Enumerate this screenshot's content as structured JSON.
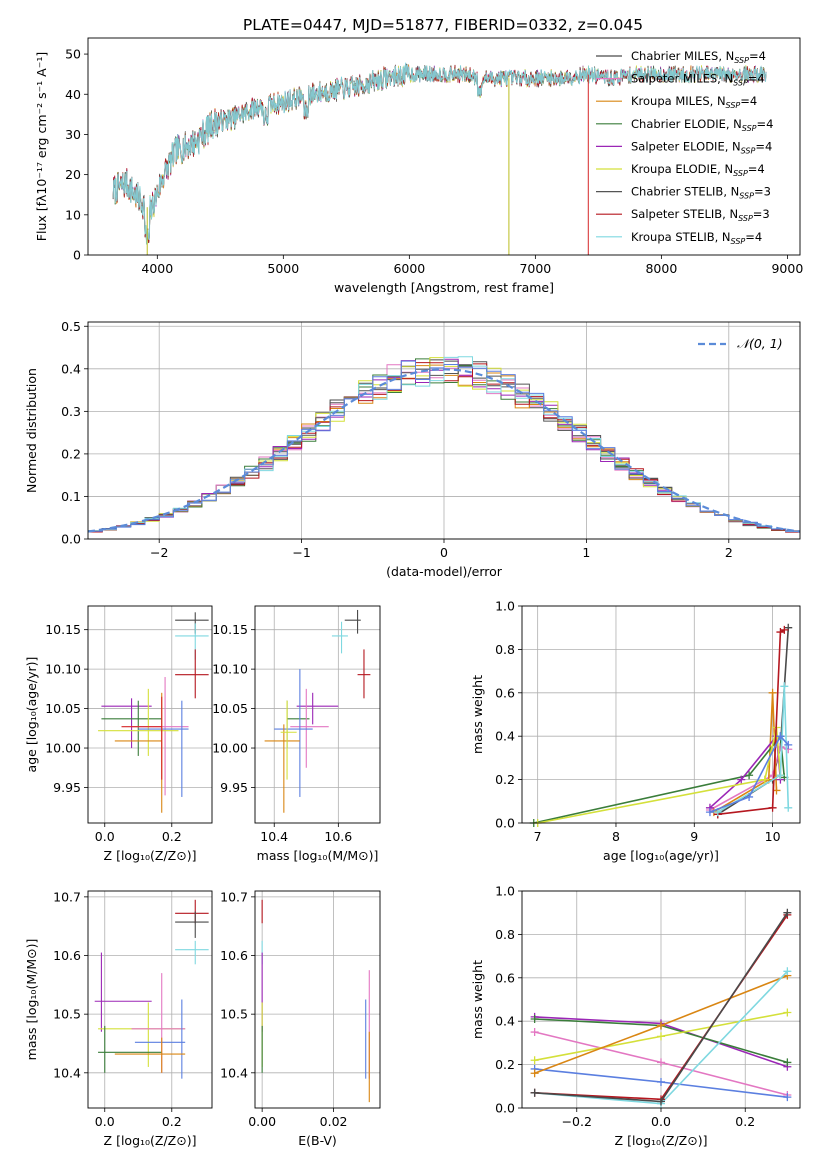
{
  "title": "PLATE=0447, MJD=51877, FIBERID=0332, z=0.045",
  "chart_data": [
    {
      "id": "spectrum",
      "type": "line",
      "xlabel": "wavelength [Angstrom, rest frame]",
      "ylabel": "Flux [fλ10⁻¹⁷ erg cm⁻² s⁻¹ A⁻¹]",
      "xlim": [
        3450,
        9100
      ],
      "ylim": [
        0,
        54
      ],
      "xticks": [
        4000,
        5000,
        6000,
        7000,
        8000,
        9000
      ],
      "yticks": [
        0,
        10,
        20,
        30,
        40,
        50
      ],
      "grid": false,
      "legend_position": "right",
      "continuum_anchors": [
        [
          3650,
          16
        ],
        [
          3750,
          18
        ],
        [
          3850,
          14
        ],
        [
          3950,
          11
        ],
        [
          4050,
          20
        ],
        [
          4150,
          26
        ],
        [
          4300,
          28
        ],
        [
          4450,
          33
        ],
        [
          4600,
          34
        ],
        [
          4800,
          37
        ],
        [
          5000,
          38
        ],
        [
          5200,
          40
        ],
        [
          5400,
          41
        ],
        [
          5600,
          42
        ],
        [
          5800,
          44
        ],
        [
          6000,
          45
        ],
        [
          6200,
          45
        ],
        [
          6400,
          45
        ],
        [
          6600,
          44
        ],
        [
          6800,
          44
        ],
        [
          7000,
          44
        ],
        [
          7200,
          44
        ],
        [
          7400,
          45
        ],
        [
          7600,
          44
        ],
        [
          7800,
          45
        ],
        [
          8000,
          45
        ],
        [
          8200,
          45
        ],
        [
          8400,
          45
        ],
        [
          8600,
          45
        ],
        [
          8830,
          45
        ]
      ],
      "dropouts": [
        [
          3920,
          "#bcbd22"
        ],
        [
          6790,
          "#bcbd22"
        ],
        [
          7420,
          "#d62728"
        ]
      ],
      "series": [
        {
          "name": "Chabrier MILES, N",
          "sub": "SSP",
          "suffix": "=4",
          "color": "#4a4a4a",
          "lw": 0.8
        },
        {
          "name": "Salpeter MILES, N",
          "sub": "SSP",
          "suffix": "=4",
          "color": "#e377c2",
          "lw": 0.8
        },
        {
          "name": "Kroupa MILES, N",
          "sub": "SSP",
          "suffix": "=4",
          "color": "#d98613",
          "lw": 0.8
        },
        {
          "name": "Chabrier ELODIE, N",
          "sub": "SSP",
          "suffix": "=4",
          "color": "#3a7d3a",
          "lw": 0.8
        },
        {
          "name": "Salpeter ELODIE, N",
          "sub": "SSP",
          "suffix": "=4",
          "color": "#9b26b6",
          "lw": 0.8
        },
        {
          "name": "Kroupa ELODIE, N",
          "sub": "SSP",
          "suffix": "=4",
          "color": "#d4e03a",
          "lw": 0.8
        },
        {
          "name": "Chabrier STELIB, N",
          "sub": "SSP",
          "suffix": "=3",
          "color": "#555555",
          "lw": 0.8
        },
        {
          "name": "Salpeter STELIB, N",
          "sub": "SSP",
          "suffix": "=3",
          "color": "#b5171f",
          "lw": 0.8
        },
        {
          "name": "Kroupa STELIB, N",
          "sub": "SSP",
          "suffix": "=4",
          "color": "#7fd8e0",
          "lw": 1.0
        }
      ]
    },
    {
      "id": "residual-hist",
      "type": "step-histogram",
      "xlabel": "(data-model)/error",
      "ylabel": "Normed distribution",
      "xlim": [
        -2.5,
        2.5
      ],
      "ylim": [
        0,
        0.51
      ],
      "xticks": [
        -2,
        -1,
        0,
        1,
        2
      ],
      "yticks": [
        0.0,
        0.1,
        0.2,
        0.3,
        0.4,
        0.5
      ],
      "grid": true,
      "bin_width": 0.1,
      "legend": {
        "label": "𝒩(0, 1)",
        "position": "top-right"
      },
      "normal_curve": {
        "mean": 0,
        "sigma": 1,
        "color": "#5b8bd8"
      },
      "colors": [
        "#4a4a4a",
        "#e377c2",
        "#d98613",
        "#3a7d3a",
        "#9b26b6",
        "#d4e03a",
        "#555555",
        "#b5171f",
        "#7fd8e0",
        "#5b7fe0"
      ]
    },
    {
      "id": "age-vs-Z",
      "type": "errorbar",
      "xlabel": "Z [log₁₀(Z/Z⊙)]",
      "ylabel": "age  [log₁₀(age/yr)]",
      "xlim": [
        -0.05,
        0.32
      ],
      "ylim": [
        9.905,
        10.18
      ],
      "xticks": [
        0.0,
        0.2
      ],
      "yticks": [
        9.95,
        10.0,
        10.05,
        10.1,
        10.15
      ],
      "grid": true,
      "points": [
        {
          "x": 0.27,
          "y": 10.162,
          "xlo": 0.21,
          "xhi": 0.31,
          "ylo": 10.145,
          "yhi": 10.172,
          "color": "#4a4a4a"
        },
        {
          "x": 0.27,
          "y": 10.142,
          "xlo": 0.21,
          "xhi": 0.31,
          "ylo": 10.112,
          "yhi": 10.158,
          "color": "#7fd8e0"
        },
        {
          "x": 0.27,
          "y": 10.093,
          "xlo": 0.21,
          "xhi": 0.31,
          "ylo": 10.063,
          "yhi": 10.125,
          "color": "#b5171f"
        },
        {
          "x": 0.08,
          "y": 10.053,
          "xlo": -0.01,
          "xhi": 0.14,
          "ylo": 10.0,
          "yhi": 10.063,
          "color": "#9b26b6"
        },
        {
          "x": 0.1,
          "y": 10.037,
          "xlo": -0.01,
          "xhi": 0.17,
          "ylo": 9.99,
          "yhi": 10.06,
          "color": "#3a7d3a"
        },
        {
          "x": 0.18,
          "y": 10.027,
          "xlo": 0.08,
          "xhi": 0.25,
          "ylo": 9.94,
          "yhi": 10.09,
          "color": "#e377c2"
        },
        {
          "x": 0.13,
          "y": 10.022,
          "xlo": -0.02,
          "xhi": 0.22,
          "ylo": 9.99,
          "yhi": 10.075,
          "color": "#d4e03a"
        },
        {
          "x": 0.23,
          "y": 10.024,
          "xlo": 0.1,
          "xhi": 0.25,
          "ylo": 9.938,
          "yhi": 10.06,
          "color": "#5b7fe0"
        },
        {
          "x": 0.17,
          "y": 10.009,
          "xlo": 0.03,
          "xhi": 0.17,
          "ylo": 9.918,
          "yhi": 10.07,
          "color": "#d98613"
        },
        {
          "x": 0.17,
          "y": 10.027,
          "xlo": 0.05,
          "xhi": 0.17,
          "ylo": 9.96,
          "yhi": 10.065,
          "color": "#d62728"
        }
      ]
    },
    {
      "id": "age-vs-mass",
      "type": "errorbar",
      "xlabel": "mass [log₁₀(M/M⊙)]",
      "ylabel": "",
      "xlim": [
        10.34,
        10.73
      ],
      "ylim": [
        9.905,
        10.18
      ],
      "xticks": [
        10.4,
        10.6
      ],
      "yticks": [
        9.95,
        10.0,
        10.05,
        10.1,
        10.15
      ],
      "grid": true,
      "points": [
        {
          "x": 10.66,
          "y": 10.162,
          "xlo": 10.62,
          "xhi": 10.67,
          "ylo": 10.145,
          "yhi": 10.175,
          "color": "#4a4a4a"
        },
        {
          "x": 10.61,
          "y": 10.142,
          "xlo": 10.58,
          "xhi": 10.63,
          "ylo": 10.12,
          "yhi": 10.16,
          "color": "#7fd8e0"
        },
        {
          "x": 10.68,
          "y": 10.093,
          "xlo": 10.66,
          "xhi": 10.7,
          "ylo": 10.063,
          "yhi": 10.125,
          "color": "#b5171f"
        },
        {
          "x": 10.52,
          "y": 10.053,
          "xlo": 10.47,
          "xhi": 10.6,
          "ylo": 10.03,
          "yhi": 10.07,
          "color": "#9b26b6"
        },
        {
          "x": 10.44,
          "y": 10.037,
          "xlo": 10.44,
          "xhi": 10.51,
          "ylo": 10.0,
          "yhi": 10.06,
          "color": "#3a7d3a"
        },
        {
          "x": 10.5,
          "y": 10.027,
          "xlo": 10.45,
          "xhi": 10.57,
          "ylo": 9.975,
          "yhi": 10.075,
          "color": "#e377c2"
        },
        {
          "x": 10.48,
          "y": 10.024,
          "xlo": 10.4,
          "xhi": 10.52,
          "ylo": 9.938,
          "yhi": 10.1,
          "color": "#5b7fe0"
        },
        {
          "x": 10.43,
          "y": 10.009,
          "xlo": 10.37,
          "xhi": 10.48,
          "ylo": 9.918,
          "yhi": 10.03,
          "color": "#d98613"
        },
        {
          "x": 10.44,
          "y": 10.02,
          "xlo": 10.42,
          "xhi": 10.47,
          "ylo": 9.96,
          "yhi": 10.06,
          "color": "#d4e03a"
        }
      ]
    },
    {
      "id": "massweight-vs-age",
      "type": "line",
      "xlabel": "age  [log₁₀(age/yr)]",
      "ylabel": "mass weight",
      "xlim": [
        6.8,
        10.35
      ],
      "ylim": [
        0,
        1.0
      ],
      "xticks": [
        7,
        8,
        9,
        10
      ],
      "yticks": [
        0.0,
        0.2,
        0.4,
        0.6,
        0.8,
        1.0
      ],
      "grid": true,
      "series": [
        {
          "color": "#4a4a4a",
          "pts": [
            [
              9.3,
              0.04
            ],
            [
              10.0,
              0.2
            ],
            [
              10.1,
              0.35
            ],
            [
              10.2,
              0.9
            ]
          ]
        },
        {
          "color": "#e377c2",
          "pts": [
            [
              9.2,
              0.06
            ],
            [
              10.0,
              0.22
            ],
            [
              10.1,
              0.35
            ],
            [
              10.2,
              0.34
            ]
          ]
        },
        {
          "color": "#d98613",
          "pts": [
            [
              9.25,
              0.05
            ],
            [
              9.95,
              0.2
            ],
            [
              10.0,
              0.6
            ],
            [
              10.05,
              0.15
            ]
          ]
        },
        {
          "color": "#3a7d3a",
          "pts": [
            [
              6.95,
              0.0
            ],
            [
              9.7,
              0.22
            ],
            [
              10.1,
              0.4
            ],
            [
              10.15,
              0.21
            ]
          ]
        },
        {
          "color": "#9b26b6",
          "pts": [
            [
              9.2,
              0.07
            ],
            [
              9.6,
              0.2
            ],
            [
              10.05,
              0.4
            ],
            [
              10.1,
              0.2
            ]
          ]
        },
        {
          "color": "#d4e03a",
          "pts": [
            [
              7.0,
              0.0
            ],
            [
              9.9,
              0.2
            ],
            [
              10.05,
              0.44
            ],
            [
              10.1,
              0.22
            ]
          ]
        },
        {
          "color": "#b5171f",
          "pts": [
            [
              9.3,
              0.04
            ],
            [
              10.0,
              0.07
            ],
            [
              10.1,
              0.88
            ],
            [
              10.15,
              0.89
            ]
          ]
        },
        {
          "color": "#7fd8e0",
          "pts": [
            [
              9.3,
              0.05
            ],
            [
              10.1,
              0.22
            ],
            [
              10.15,
              0.63
            ],
            [
              10.2,
              0.07
            ]
          ]
        },
        {
          "color": "#5b7fe0",
          "pts": [
            [
              9.2,
              0.05
            ],
            [
              9.7,
              0.12
            ],
            [
              10.1,
              0.4
            ],
            [
              10.2,
              0.36
            ]
          ]
        }
      ]
    },
    {
      "id": "mass-vs-Z",
      "type": "errorbar",
      "xlabel": "Z [log₁₀(Z/Z⊙)]",
      "ylabel": "mass [log₁₀(M/M⊙)]",
      "xlim": [
        -0.05,
        0.32
      ],
      "ylim": [
        10.34,
        10.71
      ],
      "xticks": [
        0.0,
        0.2
      ],
      "yticks": [
        10.4,
        10.5,
        10.6,
        10.7
      ],
      "grid": true,
      "points": [
        {
          "x": 0.27,
          "y": 10.672,
          "xlo": 0.21,
          "xhi": 0.31,
          "ylo": 10.655,
          "yhi": 10.695,
          "color": "#b5171f"
        },
        {
          "x": 0.27,
          "y": 10.657,
          "xlo": 0.21,
          "xhi": 0.31,
          "ylo": 10.63,
          "yhi": 10.675,
          "color": "#4a4a4a"
        },
        {
          "x": 0.27,
          "y": 10.61,
          "xlo": 0.21,
          "xhi": 0.31,
          "ylo": 10.585,
          "yhi": 10.625,
          "color": "#7fd8e0"
        },
        {
          "x": -0.01,
          "y": 10.522,
          "xlo": -0.03,
          "xhi": 0.14,
          "ylo": 10.47,
          "yhi": 10.605,
          "color": "#9b26b6"
        },
        {
          "x": 0.13,
          "y": 10.475,
          "xlo": -0.02,
          "xhi": 0.24,
          "ylo": 10.41,
          "yhi": 10.52,
          "color": "#d4e03a"
        },
        {
          "x": 0.17,
          "y": 10.475,
          "xlo": 0.08,
          "xhi": 0.24,
          "ylo": 10.4,
          "yhi": 10.57,
          "color": "#e377c2"
        },
        {
          "x": 0.0,
          "y": 10.435,
          "xlo": -0.02,
          "xhi": 0.17,
          "ylo": 10.4,
          "yhi": 10.48,
          "color": "#3a7d3a"
        },
        {
          "x": 0.23,
          "y": 10.452,
          "xlo": 0.09,
          "xhi": 0.24,
          "ylo": 10.39,
          "yhi": 10.525,
          "color": "#5b7fe0"
        },
        {
          "x": 0.17,
          "y": 10.432,
          "xlo": 0.03,
          "xhi": 0.24,
          "ylo": 10.4,
          "yhi": 10.46,
          "color": "#d98613"
        }
      ]
    },
    {
      "id": "mass-vs-EBV",
      "type": "errorbar",
      "xlabel": "E(B-V)",
      "ylabel": "",
      "xlim": [
        -0.002,
        0.033
      ],
      "ylim": [
        10.34,
        10.71
      ],
      "xticks": [
        0.0,
        0.02
      ],
      "yticks": [
        10.4,
        10.5,
        10.6,
        10.7
      ],
      "grid": true,
      "points": [
        {
          "x": 0.0,
          "y": 10.672,
          "ylo": 10.655,
          "yhi": 10.695,
          "color": "#b5171f"
        },
        {
          "x": 0.0,
          "y": 10.61,
          "ylo": 10.585,
          "yhi": 10.625,
          "color": "#7fd8e0"
        },
        {
          "x": 0.0,
          "y": 10.522,
          "ylo": 10.47,
          "yhi": 10.605,
          "color": "#9b26b6"
        },
        {
          "x": 0.0,
          "y": 10.475,
          "ylo": 10.41,
          "yhi": 10.52,
          "color": "#d4e03a"
        },
        {
          "x": 0.0,
          "y": 10.435,
          "ylo": 10.4,
          "yhi": 10.48,
          "color": "#3a7d3a"
        },
        {
          "x": 0.029,
          "y": 10.452,
          "ylo": 10.39,
          "yhi": 10.525,
          "color": "#5b7fe0"
        },
        {
          "x": 0.03,
          "y": 10.475,
          "ylo": 10.39,
          "yhi": 10.575,
          "color": "#e377c2"
        },
        {
          "x": 0.03,
          "y": 10.432,
          "ylo": 10.35,
          "yhi": 10.47,
          "color": "#d98613"
        }
      ]
    },
    {
      "id": "massweight-vs-Z",
      "type": "line",
      "xlabel": "Z [log₁₀(Z/Z⊙)]",
      "ylabel": "mass weight",
      "xlim": [
        -0.33,
        0.33
      ],
      "ylim": [
        0,
        1.0
      ],
      "xticks": [
        -0.2,
        0.0,
        0.2
      ],
      "yticks": [
        0.0,
        0.2,
        0.4,
        0.6,
        0.8,
        1.0
      ],
      "grid": true,
      "series": [
        {
          "color": "#9b26b6",
          "pts": [
            [
              -0.3,
              0.42
            ],
            [
              0.0,
              0.39
            ],
            [
              0.3,
              0.19
            ]
          ]
        },
        {
          "color": "#3a7d3a",
          "pts": [
            [
              -0.3,
              0.41
            ],
            [
              0.0,
              0.38
            ],
            [
              0.3,
              0.21
            ]
          ]
        },
        {
          "color": "#e377c2",
          "pts": [
            [
              -0.3,
              0.35
            ],
            [
              0.0,
              0.21
            ],
            [
              0.3,
              0.06
            ]
          ]
        },
        {
          "color": "#d4e03a",
          "pts": [
            [
              -0.3,
              0.22
            ],
            [
              0.0,
              0.33
            ],
            [
              0.3,
              0.44
            ]
          ]
        },
        {
          "color": "#5b7fe0",
          "pts": [
            [
              -0.3,
              0.18
            ],
            [
              0.0,
              0.12
            ],
            [
              0.3,
              0.05
            ]
          ]
        },
        {
          "color": "#d98613",
          "pts": [
            [
              -0.3,
              0.16
            ],
            [
              0.0,
              0.38
            ],
            [
              0.3,
              0.61
            ]
          ]
        },
        {
          "color": "#7fd8e0",
          "pts": [
            [
              -0.3,
              0.07
            ],
            [
              0.0,
              0.02
            ],
            [
              0.3,
              0.63
            ]
          ]
        },
        {
          "color": "#b5171f",
          "pts": [
            [
              -0.3,
              0.07
            ],
            [
              0.0,
              0.04
            ],
            [
              0.3,
              0.89
            ]
          ]
        },
        {
          "color": "#4a4a4a",
          "pts": [
            [
              -0.3,
              0.07
            ],
            [
              0.0,
              0.03
            ],
            [
              0.3,
              0.9
            ]
          ]
        }
      ]
    }
  ]
}
